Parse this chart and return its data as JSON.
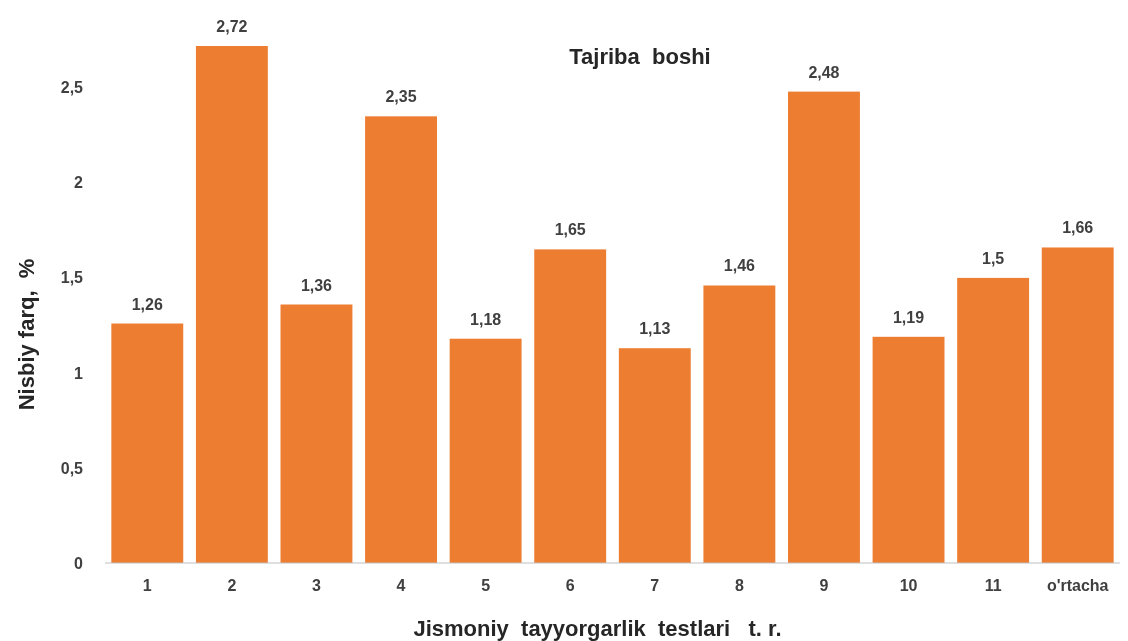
{
  "chart_data": {
    "type": "bar",
    "title": "Tajriba  boshi",
    "xlabel": "Jismoniy  tayyorgarlik  testlari   t. r.",
    "ylabel": "Nisbiy farq,  %",
    "categories": [
      "1",
      "2",
      "3",
      "4",
      "5",
      "6",
      "7",
      "8",
      "9",
      "10",
      "11",
      "o'rtacha"
    ],
    "values": [
      1.26,
      2.72,
      1.36,
      2.35,
      1.18,
      1.65,
      1.13,
      1.46,
      2.48,
      1.19,
      1.5,
      1.66
    ],
    "value_labels": [
      "1,26",
      "2,72",
      "1,36",
      "2,35",
      "1,18",
      "1,65",
      "1,13",
      "1,46",
      "2,48",
      "1,19",
      "1,5",
      "1,66"
    ],
    "color": "#ed7d31",
    "ylim": [
      0,
      2.72
    ],
    "yticks": [
      0,
      {
        "value": 0.5,
        "label": "0,5"
      },
      1,
      {
        "value": 1.5,
        "label": "1,5"
      },
      2,
      {
        "value": 2.5,
        "label": "2,5"
      }
    ],
    "grid": false
  }
}
